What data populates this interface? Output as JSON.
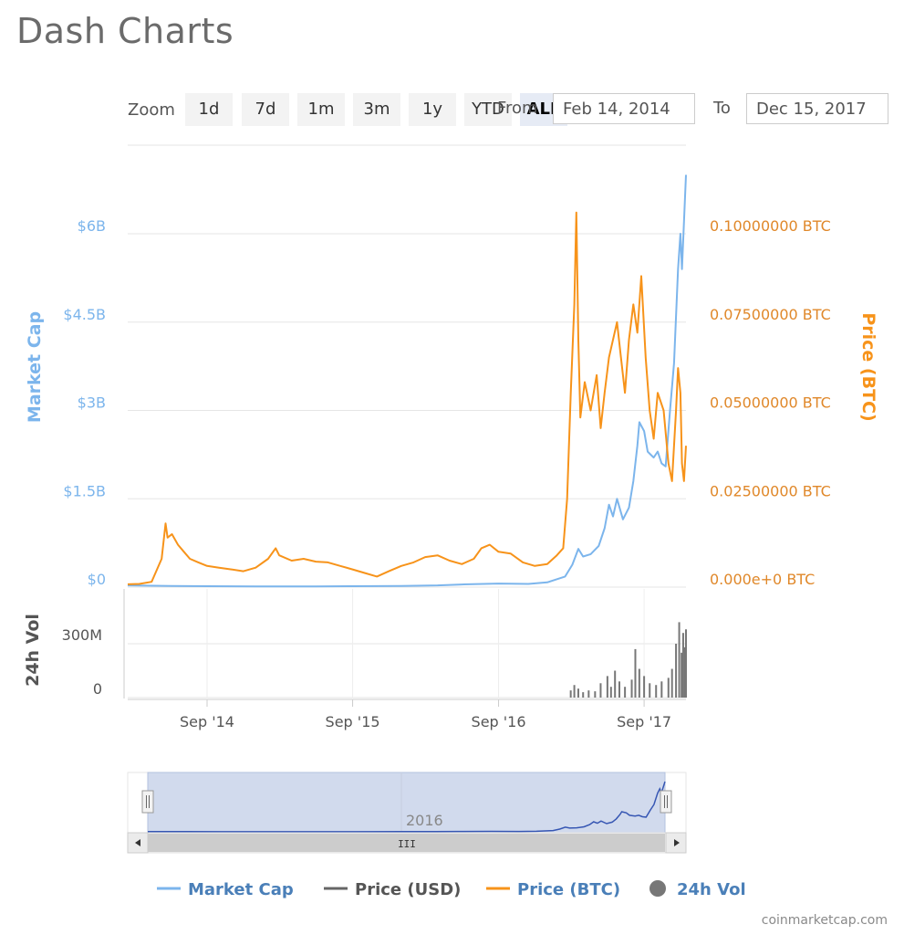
{
  "page": {
    "title": "Dash Charts",
    "credit": "coinmarketcap.com"
  },
  "zoom": {
    "label": "Zoom",
    "buttons": [
      "1d",
      "7d",
      "1m",
      "3m",
      "1y",
      "YTD",
      "ALL"
    ],
    "active": "ALL"
  },
  "range": {
    "from_label": "From",
    "from_value": "Feb 14, 2014",
    "to_label": "To",
    "to_value": "Dec 15, 2017"
  },
  "navigator": {
    "year_label": "2016",
    "scroll_grip": "III"
  },
  "legend": [
    {
      "label": "Market Cap",
      "color": "#7cb5ec",
      "symbol": "line",
      "active": true
    },
    {
      "label": "Price (USD)",
      "color": "#666666",
      "symbol": "line",
      "active": false
    },
    {
      "label": "Price (BTC)",
      "color": "#f7931a",
      "symbol": "line",
      "active": true
    },
    {
      "label": "24h Vol",
      "color": "#777777",
      "symbol": "circle",
      "active": true
    }
  ],
  "chart_data": {
    "type": "line",
    "x_range": [
      "2014-02-14",
      "2017-12-15"
    ],
    "x_ticks": [
      "Sep '14",
      "Sep '15",
      "Sep '16",
      "Sep '17"
    ],
    "axes": {
      "market_cap": {
        "title": "Market Cap",
        "ticks": [
          "$0",
          "$1.5B",
          "$3B",
          "$4.5B",
          "$6B"
        ],
        "range": [
          0,
          6000000000
        ],
        "color": "#7cb5ec"
      },
      "price_btc": {
        "title": "Price (BTC)",
        "ticks": [
          "0.000e+0 BTC",
          "0.02500000 BTC",
          "0.05000000 BTC",
          "0.07500000 BTC",
          "0.10000000 BTC"
        ],
        "range": [
          0,
          0.1
        ],
        "color": "#f7931a"
      },
      "volume": {
        "title": "24h Vol",
        "ticks": [
          "0",
          "300M"
        ],
        "range": [
          0,
          300000000
        ],
        "color": "#777777"
      }
    },
    "grid": true,
    "series": [
      {
        "name": "Market Cap",
        "axis": "market_cap",
        "color": "#7cb5ec",
        "points": [
          [
            "2014-02-14",
            30000000
          ],
          [
            "2014-06-01",
            20000000
          ],
          [
            "2014-09-01",
            15000000
          ],
          [
            "2015-01-01",
            12000000
          ],
          [
            "2015-06-01",
            11000000
          ],
          [
            "2015-09-01",
            15000000
          ],
          [
            "2016-01-01",
            20000000
          ],
          [
            "2016-04-01",
            30000000
          ],
          [
            "2016-06-01",
            45000000
          ],
          [
            "2016-09-01",
            60000000
          ],
          [
            "2016-11-15",
            55000000
          ],
          [
            "2017-01-01",
            80000000
          ],
          [
            "2017-02-15",
            180000000
          ],
          [
            "2017-03-05",
            380000000
          ],
          [
            "2017-03-20",
            650000000
          ],
          [
            "2017-04-01",
            520000000
          ],
          [
            "2017-04-20",
            560000000
          ],
          [
            "2017-05-10",
            700000000
          ],
          [
            "2017-05-25",
            1000000000
          ],
          [
            "2017-06-05",
            1400000000
          ],
          [
            "2017-06-15",
            1200000000
          ],
          [
            "2017-06-25",
            1500000000
          ],
          [
            "2017-07-10",
            1150000000
          ],
          [
            "2017-07-25",
            1350000000
          ],
          [
            "2017-08-05",
            1800000000
          ],
          [
            "2017-08-15",
            2400000000
          ],
          [
            "2017-08-20",
            2800000000
          ],
          [
            "2017-09-01",
            2650000000
          ],
          [
            "2017-09-10",
            2300000000
          ],
          [
            "2017-09-25",
            2200000000
          ],
          [
            "2017-10-05",
            2300000000
          ],
          [
            "2017-10-15",
            2100000000
          ],
          [
            "2017-10-25",
            2050000000
          ],
          [
            "2017-11-05",
            3000000000
          ],
          [
            "2017-11-15",
            3800000000
          ],
          [
            "2017-11-25",
            5400000000
          ],
          [
            "2017-12-01",
            6000000000
          ],
          [
            "2017-12-05",
            5400000000
          ],
          [
            "2017-12-10",
            6200000000
          ],
          [
            "2017-12-15",
            7000000000
          ]
        ]
      },
      {
        "name": "Price (BTC)",
        "axis": "price_btc",
        "color": "#f7931a",
        "points": [
          [
            "2014-02-14",
            0.0008
          ],
          [
            "2014-03-15",
            0.0009
          ],
          [
            "2014-04-15",
            0.0015
          ],
          [
            "2014-05-10",
            0.008
          ],
          [
            "2014-05-20",
            0.018
          ],
          [
            "2014-05-25",
            0.014
          ],
          [
            "2014-06-05",
            0.015
          ],
          [
            "2014-06-20",
            0.012
          ],
          [
            "2014-07-05",
            0.01
          ],
          [
            "2014-07-20",
            0.008
          ],
          [
            "2014-08-10",
            0.007
          ],
          [
            "2014-09-01",
            0.006
          ],
          [
            "2014-10-01",
            0.0055
          ],
          [
            "2014-11-01",
            0.005
          ],
          [
            "2014-12-01",
            0.0045
          ],
          [
            "2015-01-01",
            0.0055
          ],
          [
            "2015-02-01",
            0.008
          ],
          [
            "2015-02-20",
            0.011
          ],
          [
            "2015-03-01",
            0.009
          ],
          [
            "2015-04-01",
            0.0075
          ],
          [
            "2015-05-01",
            0.008
          ],
          [
            "2015-06-01",
            0.0072
          ],
          [
            "2015-07-01",
            0.007
          ],
          [
            "2015-08-01",
            0.006
          ],
          [
            "2015-09-01",
            0.005
          ],
          [
            "2015-10-01",
            0.004
          ],
          [
            "2015-11-01",
            0.003
          ],
          [
            "2015-12-01",
            0.0045
          ],
          [
            "2016-01-01",
            0.006
          ],
          [
            "2016-02-01",
            0.007
          ],
          [
            "2016-03-01",
            0.0085
          ],
          [
            "2016-04-01",
            0.009
          ],
          [
            "2016-05-01",
            0.0075
          ],
          [
            "2016-06-01",
            0.0065
          ],
          [
            "2016-07-01",
            0.008
          ],
          [
            "2016-07-20",
            0.011
          ],
          [
            "2016-08-10",
            0.012
          ],
          [
            "2016-09-01",
            0.01
          ],
          [
            "2016-10-01",
            0.0095
          ],
          [
            "2016-11-01",
            0.007
          ],
          [
            "2016-12-01",
            0.006
          ],
          [
            "2017-01-01",
            0.0065
          ],
          [
            "2017-01-25",
            0.009
          ],
          [
            "2017-02-10",
            0.011
          ],
          [
            "2017-02-20",
            0.025
          ],
          [
            "2017-03-01",
            0.055
          ],
          [
            "2017-03-10",
            0.08
          ],
          [
            "2017-03-15",
            0.106
          ],
          [
            "2017-03-20",
            0.07
          ],
          [
            "2017-03-25",
            0.048
          ],
          [
            "2017-04-05",
            0.058
          ],
          [
            "2017-04-20",
            0.05
          ],
          [
            "2017-05-05",
            0.06
          ],
          [
            "2017-05-15",
            0.045
          ],
          [
            "2017-05-25",
            0.055
          ],
          [
            "2017-06-05",
            0.065
          ],
          [
            "2017-06-15",
            0.07
          ],
          [
            "2017-06-25",
            0.075
          ],
          [
            "2017-07-05",
            0.065
          ],
          [
            "2017-07-15",
            0.055
          ],
          [
            "2017-07-25",
            0.07
          ],
          [
            "2017-08-05",
            0.08
          ],
          [
            "2017-08-15",
            0.072
          ],
          [
            "2017-08-25",
            0.088
          ],
          [
            "2017-09-05",
            0.065
          ],
          [
            "2017-09-15",
            0.05
          ],
          [
            "2017-09-25",
            0.042
          ],
          [
            "2017-10-05",
            0.055
          ],
          [
            "2017-10-20",
            0.05
          ],
          [
            "2017-11-01",
            0.035
          ],
          [
            "2017-11-10",
            0.03
          ],
          [
            "2017-11-20",
            0.05
          ],
          [
            "2017-11-25",
            0.062
          ],
          [
            "2017-12-01",
            0.055
          ],
          [
            "2017-12-05",
            0.035
          ],
          [
            "2017-12-10",
            0.03
          ],
          [
            "2017-12-15",
            0.04
          ]
        ]
      },
      {
        "name": "24h Vol",
        "axis": "volume",
        "type": "column",
        "color": "#777777",
        "points": [
          [
            "2017-03-01",
            40000000
          ],
          [
            "2017-03-10",
            70000000
          ],
          [
            "2017-03-20",
            50000000
          ],
          [
            "2017-04-01",
            30000000
          ],
          [
            "2017-04-15",
            40000000
          ],
          [
            "2017-05-01",
            35000000
          ],
          [
            "2017-05-15",
            80000000
          ],
          [
            "2017-06-01",
            120000000
          ],
          [
            "2017-06-10",
            60000000
          ],
          [
            "2017-06-20",
            150000000
          ],
          [
            "2017-07-01",
            90000000
          ],
          [
            "2017-07-15",
            60000000
          ],
          [
            "2017-08-01",
            100000000
          ],
          [
            "2017-08-10",
            270000000
          ],
          [
            "2017-08-20",
            160000000
          ],
          [
            "2017-09-01",
            120000000
          ],
          [
            "2017-09-15",
            80000000
          ],
          [
            "2017-10-01",
            70000000
          ],
          [
            "2017-10-15",
            90000000
          ],
          [
            "2017-11-01",
            110000000
          ],
          [
            "2017-11-10",
            160000000
          ],
          [
            "2017-11-20",
            300000000
          ],
          [
            "2017-11-28",
            420000000
          ],
          [
            "2017-12-04",
            250000000
          ],
          [
            "2017-12-08",
            360000000
          ],
          [
            "2017-12-12",
            280000000
          ],
          [
            "2017-12-15",
            380000000
          ]
        ]
      }
    ]
  }
}
